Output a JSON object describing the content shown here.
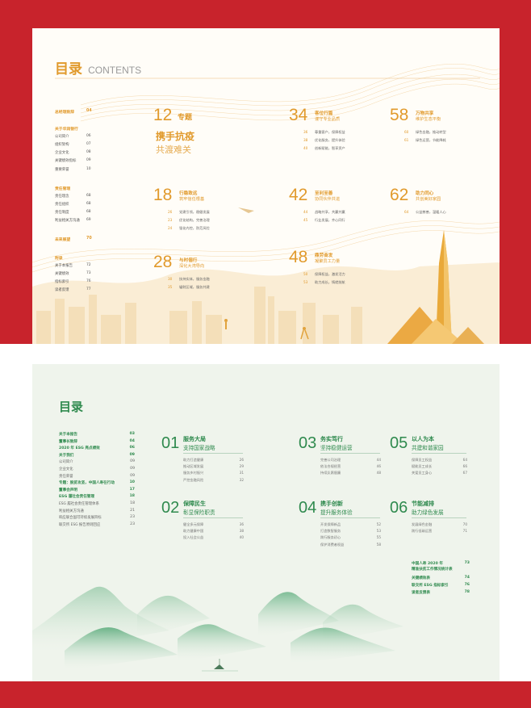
{
  "page1": {
    "title_cn": "目录",
    "title_en": "CONTENTS",
    "sidebar": [
      {
        "type": "head",
        "label": "总经理致辞",
        "num": "04"
      },
      {
        "type": "head",
        "label": "关于华润银行",
        "num": ""
      },
      {
        "type": "row",
        "label": "公司简介",
        "num": "06"
      },
      {
        "type": "row",
        "label": "组织架构",
        "num": "07"
      },
      {
        "type": "row",
        "label": "企业文化",
        "num": "08"
      },
      {
        "type": "row",
        "label": "关键绩效指标",
        "num": "09"
      },
      {
        "type": "row",
        "label": "重要荣誉",
        "num": "10"
      },
      {
        "type": "head",
        "label": "责任管理",
        "num": ""
      },
      {
        "type": "row",
        "label": "责任理念",
        "num": "68"
      },
      {
        "type": "row",
        "label": "责任组织",
        "num": "68"
      },
      {
        "type": "row",
        "label": "责任制度",
        "num": "68"
      },
      {
        "type": "row",
        "label": "利益相关方沟通",
        "num": "69"
      },
      {
        "type": "head",
        "label": "未来展望",
        "num": "70"
      },
      {
        "type": "head",
        "label": "附录",
        "num": ""
      },
      {
        "type": "row",
        "label": "关于本报告",
        "num": "72"
      },
      {
        "type": "row",
        "label": "关键绩效",
        "num": "73"
      },
      {
        "type": "row",
        "label": "指标索引",
        "num": "76"
      },
      {
        "type": "row",
        "label": "读者反馈",
        "num": "77"
      }
    ],
    "special": {
      "num": "12",
      "label": "专题",
      "line1": "携手抗疫",
      "line2": "共渡难关"
    },
    "sections": [
      {
        "num": "18",
        "t1": "行稳致远",
        "t2": "筑牢信任根基",
        "items": [
          [
            "26",
            "党建引领，稳健发展"
          ],
          [
            "23",
            "优化结构，完善治理"
          ],
          [
            "24",
            "强化内控，防范风险"
          ]
        ]
      },
      {
        "num": "28",
        "t1": "与时偕行",
        "t2": "深化大湾导向",
        "items": [
          [
            "30",
            "扶持实体，服务金融"
          ],
          [
            "35",
            "辐射区域，服务共建"
          ]
        ]
      },
      {
        "num": "34",
        "t1": "客位行篇",
        "t2": "谨守专业品质",
        "items": [
          [
            "36",
            "尊重客户，保障权益"
          ],
          [
            "38",
            "优化服务，提升体验"
          ],
          [
            "40",
            "创新赋能，智享资产"
          ]
        ]
      },
      {
        "num": "42",
        "t1": "至利至善",
        "t2": "协同伙伴共进",
        "items": [
          [
            "44",
            "战略共享，共赢共赢"
          ],
          [
            "45",
            "行业发展，齐心同行"
          ]
        ]
      },
      {
        "num": "48",
        "t1": "鼎劳奋发",
        "t2": "凝聚员工力量",
        "items": [
          [
            "50",
            "保障权益，激发活力"
          ],
          [
            "53",
            "助力成长，铸就前航"
          ]
        ]
      },
      {
        "num": "58",
        "t1": "万物共享",
        "t2": "维护生态平衡",
        "items": [
          [
            "60",
            "绿色金融，推动转型"
          ],
          [
            "61",
            "绿色运营，节能降耗"
          ]
        ]
      },
      {
        "num": "62",
        "t1": "助力同心",
        "t2": "共创美好家园",
        "items": [
          [
            "64",
            "公益慈善，温暖人心"
          ]
        ]
      }
    ]
  },
  "page2": {
    "title": "目录",
    "sidebar": [
      {
        "type": "head",
        "label": "关于本报告",
        "num": "03"
      },
      {
        "type": "head",
        "label": "董事长致辞",
        "num": "04"
      },
      {
        "type": "head",
        "label": "2020 年 ESG 亮点绩效",
        "num": "06"
      },
      {
        "type": "head",
        "label": "关于我们",
        "num": "09"
      },
      {
        "type": "row",
        "label": "公司简介",
        "num": "09"
      },
      {
        "type": "row",
        "label": "企业文化",
        "num": "09"
      },
      {
        "type": "row",
        "label": "责任荣誉",
        "num": "09"
      },
      {
        "type": "head",
        "label": "专题：脱贫攻坚，中国人寿在行动",
        "num": "10"
      },
      {
        "type": "head",
        "label": "董事会声明",
        "num": "17"
      },
      {
        "type": "head",
        "label": "ESG 履社会责任管理",
        "num": "18"
      },
      {
        "type": "row",
        "label": "ESG 履社会责任管理体系",
        "num": "18"
      },
      {
        "type": "row",
        "label": "利益相关方沟通",
        "num": "21"
      },
      {
        "type": "row",
        "label": "响应联合国可持续发展目标",
        "num": "23"
      },
      {
        "type": "row",
        "label": "联交所 ESG 报告原则回应",
        "num": "23"
      }
    ],
    "sections": [
      {
        "num": "01",
        "t1": "服务大局",
        "t2": "支持国家战略",
        "items": [
          [
            "助力打造健康",
            "26"
          ],
          [
            "推动区域发展",
            "29"
          ],
          [
            "服务乡村振兴",
            "31"
          ],
          [
            "严控金融风险",
            "32"
          ]
        ]
      },
      {
        "num": "02",
        "t1": "保障民生",
        "t2": "彰显保险职责",
        "items": [
          [
            "健全多元保障",
            "36"
          ],
          [
            "助力健康中国",
            "38"
          ],
          [
            "投入社会公益",
            "40"
          ]
        ]
      },
      {
        "num": "03",
        "t1": "务实笃行",
        "t2": "坚持稳健运营",
        "items": [
          [
            "完善公司治理",
            "44"
          ],
          [
            "依法合规经营",
            "46"
          ],
          [
            "持续反腐倡廉",
            "48"
          ]
        ]
      },
      {
        "num": "04",
        "t1": "携手创新",
        "t2": "提升服务体验",
        "items": [
          [
            "开发保障新品",
            "52"
          ],
          [
            "打造数智服务",
            "53"
          ],
          [
            "践行服务初心",
            "55"
          ],
          [
            "保护消费者权益",
            "58"
          ]
        ]
      },
      {
        "num": "05",
        "t1": "以人为本",
        "t2": "共建和谐家园",
        "items": [
          [
            "保障员工权益",
            "64"
          ],
          [
            "赋能员工成长",
            "66"
          ],
          [
            "关爱员工身心",
            "67"
          ]
        ]
      },
      {
        "num": "06",
        "t1": "节能减排",
        "t2": "助力绿色发展",
        "items": [
          [
            "发展绿色金融",
            "70"
          ],
          [
            "践行低碳运营",
            "71"
          ]
        ]
      }
    ],
    "appendix": [
      {
        "label": "中国人寿 2020 年",
        "label2": "精准扶贫工作情况统计表",
        "num": "73"
      },
      {
        "label": "关键绩效表",
        "label2": "",
        "num": "74"
      },
      {
        "label": "联交所 ESG 指标索引",
        "label2": "",
        "num": "76"
      },
      {
        "label": "读者反馈表",
        "label2": "",
        "num": "78"
      }
    ]
  }
}
